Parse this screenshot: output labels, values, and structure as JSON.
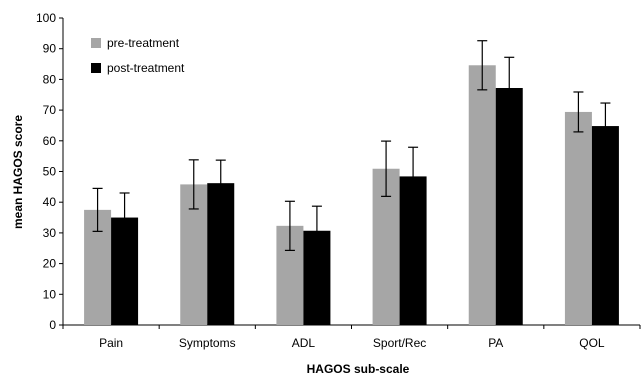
{
  "chart_data": {
    "type": "bar",
    "xlabel": "HAGOS sub-scale",
    "ylabel": "mean HAGOS score",
    "ylim": [
      0,
      100
    ],
    "yticks": [
      0,
      10,
      20,
      30,
      40,
      50,
      60,
      70,
      80,
      90,
      100
    ],
    "categories": [
      "Pain",
      "Symptoms",
      "ADL",
      "Sport/Rec",
      "PA",
      "QOL"
    ],
    "series": [
      {
        "name": "pre-treatment",
        "color": "#a6a6a6",
        "values": [
          37.5,
          45.8,
          32.3,
          50.9,
          84.6,
          69.4
        ],
        "error": [
          7,
          8,
          8,
          9,
          8,
          6.5
        ]
      },
      {
        "name": "post-treatment",
        "color": "#000000",
        "values": [
          35.0,
          46.2,
          30.7,
          48.4,
          77.2,
          64.8
        ],
        "error": [
          8,
          7.5,
          8,
          9.5,
          10,
          7.5
        ]
      }
    ],
    "legend": "top-left"
  }
}
